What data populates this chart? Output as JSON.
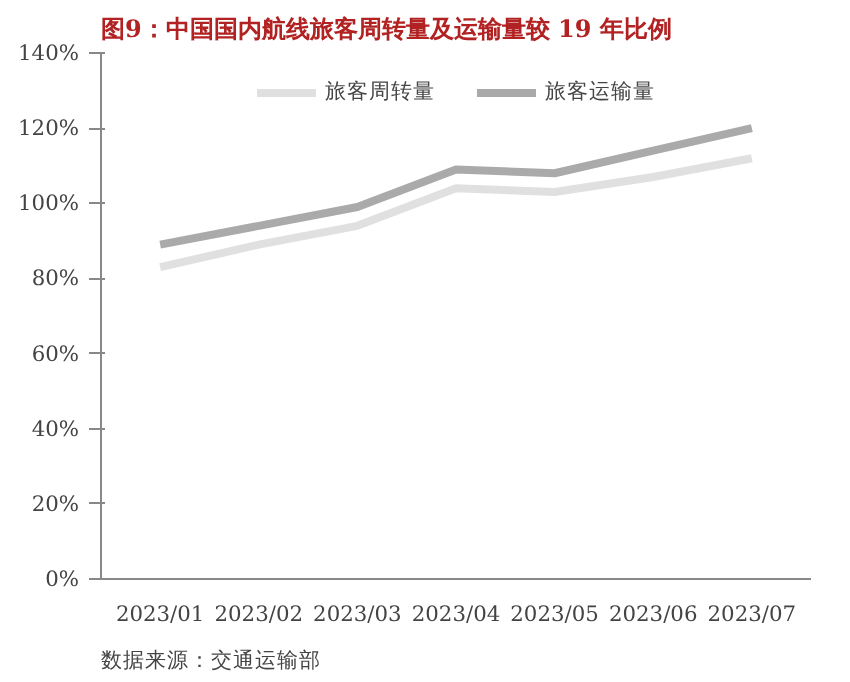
{
  "chart_data": {
    "type": "line",
    "title": "图9：中国国内航线旅客周转量及运输量较 19 年比例",
    "categories": [
      "2023/01",
      "2023/02",
      "2023/03",
      "2023/04",
      "2023/05",
      "2023/06",
      "2023/07"
    ],
    "series": [
      {
        "name": "旅客周转量",
        "color": "#e0e0e0",
        "values": [
          83,
          89,
          94,
          104,
          103,
          107,
          112
        ]
      },
      {
        "name": "旅客运输量",
        "color": "#aaaaaa",
        "values": [
          89,
          94,
          99,
          109,
          108,
          114,
          120
        ]
      }
    ],
    "ylim": [
      0,
      140
    ],
    "yticks": [
      {
        "value": 0,
        "label": "0%"
      },
      {
        "value": 20,
        "label": "20%"
      },
      {
        "value": 40,
        "label": "40%"
      },
      {
        "value": 60,
        "label": "60%"
      },
      {
        "value": 80,
        "label": "80%"
      },
      {
        "value": 100,
        "label": "100%"
      },
      {
        "value": 120,
        "label": "120%"
      },
      {
        "value": 140,
        "label": "140%"
      }
    ],
    "grid": false,
    "legend": "top",
    "marker": "none",
    "line_style": "solid",
    "annotations": [
      "数据来源：交通运输部"
    ]
  }
}
